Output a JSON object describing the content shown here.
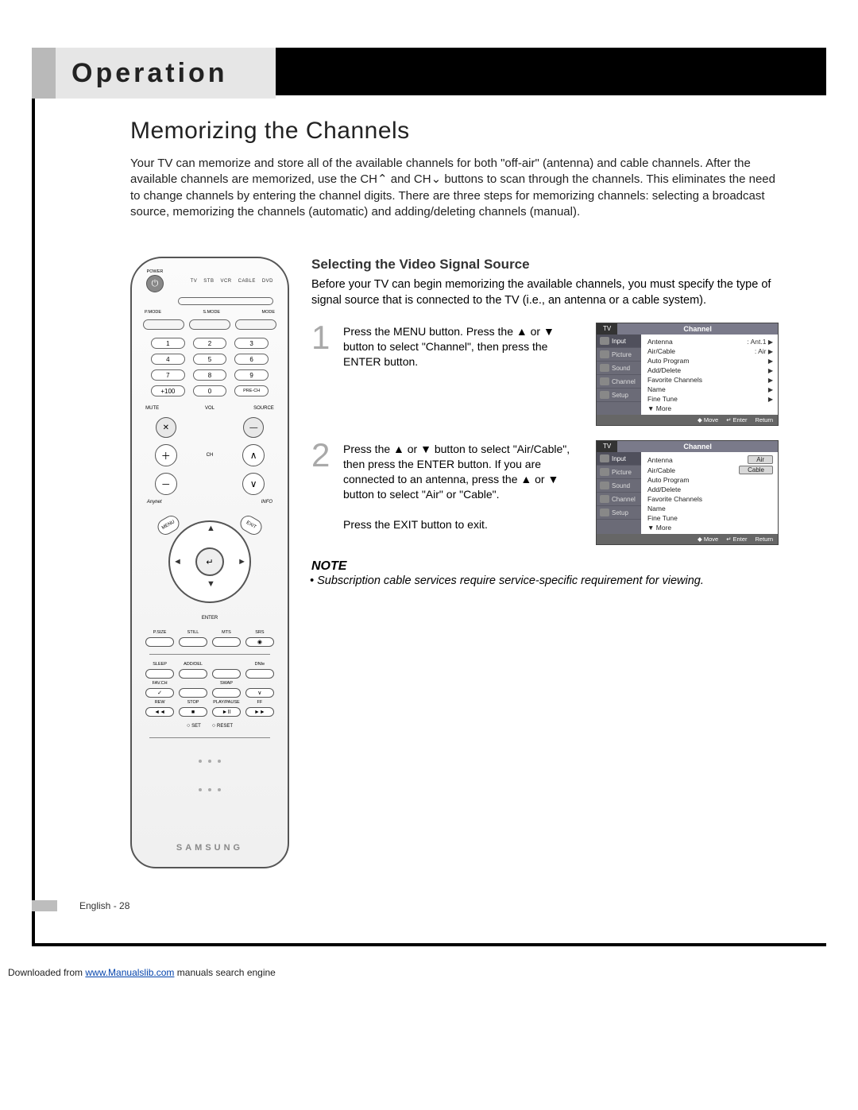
{
  "header": {
    "tab": "Operation"
  },
  "section": {
    "title": "Memorizing the Channels",
    "intro": "Your TV can memorize and store all of the available channels for both \"off-air\" (antenna) and cable channels. After the available channels are memorized, use the CH⌃ and CH⌄ buttons to scan through the channels. This eliminates the need to change channels by entering the channel digits. There are three steps for memorizing channels: selecting a broadcast source, memorizing the channels (automatic) and adding/deleting channels (manual)."
  },
  "remote": {
    "device_labels": [
      "TV",
      "STB",
      "VCR",
      "CABLE",
      "DVD"
    ],
    "power_label": "POWER",
    "mode_labels": [
      "P.MODE",
      "S.MODE",
      "MODE"
    ],
    "num_extra_left": "+100",
    "num_extra_right": "PRE-CH",
    "volch": {
      "vol": "VOL",
      "ch": "CH",
      "mute": "MUTE",
      "source": "SOURCE"
    },
    "nav": {
      "enter": "ENTER",
      "center": "↵"
    },
    "side_left": "MENU",
    "side_right": "EXIT",
    "info": "INFO",
    "anynet": "Anynet",
    "row1_labels": [
      "P.SIZE",
      "STILL",
      "MTS",
      "SRS"
    ],
    "row2_labels": [
      "SLEEP",
      "ADD/DEL",
      "",
      "DNIe"
    ],
    "row3_labels": [
      "FAV.CH",
      "",
      "SWAP",
      ""
    ],
    "row4_labels": [
      "REW",
      "STOP",
      "PLAY/PAUSE",
      "FF"
    ],
    "row4_sym": [
      "◄◄",
      "■",
      "►II",
      "►►"
    ],
    "set": "SET",
    "reset": "RESET",
    "brand": "SAMSUNG"
  },
  "sub": {
    "title": "Selecting the Video Signal Source",
    "intro": "Before your TV can begin memorizing the available channels, you must specify the type of signal source that is connected to the TV (i.e., an antenna or a cable system)."
  },
  "steps": {
    "s1": {
      "num": "1",
      "text": "Press the MENU button. Press the ▲ or ▼ button to select \"Channel\", then press the ENTER button."
    },
    "s2": {
      "num": "2",
      "text": "Press the ▲ or ▼ button to select \"Air/Cable\", then press the ENTER button. If you are connected to an antenna, press the ▲ or ▼ button to select \"Air\" or \"Cable\".",
      "exit": "Press the EXIT button to exit."
    }
  },
  "osd": {
    "tv_label": "TV",
    "title": "Channel",
    "side": [
      "Input",
      "Picture",
      "Sound",
      "Channel",
      "Setup"
    ],
    "footer": {
      "move": "◆ Move",
      "enter": "↵ Enter",
      "return": "Return"
    },
    "menu1": [
      {
        "l": "Antenna",
        "v": ": Ant.1",
        "c": "▶"
      },
      {
        "l": "Air/Cable",
        "v": ": Air",
        "c": "▶"
      },
      {
        "l": "Auto Program",
        "v": "",
        "c": "▶"
      },
      {
        "l": "Add/Delete",
        "v": "",
        "c": "▶"
      },
      {
        "l": "Favorite Channels",
        "v": "",
        "c": "▶"
      },
      {
        "l": "Name",
        "v": "",
        "c": "▶"
      },
      {
        "l": "Fine Tune",
        "v": "",
        "c": "▶"
      },
      {
        "l": "▼ More",
        "v": "",
        "c": ""
      }
    ],
    "menu2": [
      {
        "l": "Antenna",
        "box": "Air"
      },
      {
        "l": "Air/Cable",
        "box": "Cable"
      },
      {
        "l": "Auto Program"
      },
      {
        "l": "Add/Delete"
      },
      {
        "l": "Favorite Channels"
      },
      {
        "l": "Name"
      },
      {
        "l": "Fine Tune"
      },
      {
        "l": "▼ More"
      }
    ]
  },
  "note": {
    "title": "NOTE",
    "body": "Subscription cable services require service-specific requirement for viewing."
  },
  "footer": {
    "page": "English - 28",
    "download_pre": "Downloaded from ",
    "download_link": "www.Manualslib.com",
    "download_post": " manuals search engine"
  },
  "colors": {
    "frame": "#000000",
    "gray_stub": "#b9b9b9",
    "header_bg": "#e6e6e6",
    "step_num": "#a9a9a9",
    "osd_side": "#6b6b77",
    "osd_title": "#7a7a8a",
    "osd_footer": "#666666",
    "link": "#0645ad"
  }
}
